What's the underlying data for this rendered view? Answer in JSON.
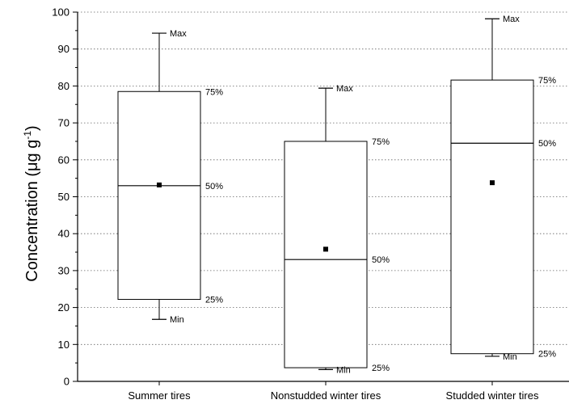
{
  "chart_data": {
    "type": "box",
    "ylabel": "Concentration (μg g",
    "ylabel_sup": "-1",
    "ylabel_close": ")",
    "ylim": [
      0,
      100
    ],
    "yticks": [
      0,
      10,
      20,
      30,
      40,
      50,
      60,
      70,
      80,
      90,
      100
    ],
    "grid": "horizontal dotted",
    "annotation_labels": {
      "max": "Max",
      "q3": "75%",
      "median": "50%",
      "q1": "25%",
      "min": "Min"
    },
    "categories": [
      "Summer tires",
      "Nonstudded winter tires",
      "Studded winter tires"
    ],
    "boxes": [
      {
        "category": "Summer tires",
        "min": 16.8,
        "q1": 22.2,
        "median": 53.0,
        "q3": 78.5,
        "max": 94.3,
        "mean": 53.2
      },
      {
        "category": "Nonstudded winter tires",
        "min": 3.2,
        "q1": 3.7,
        "median": 33.0,
        "q3": 65.0,
        "max": 79.4,
        "mean": 35.8
      },
      {
        "category": "Studded winter tires",
        "min": 6.8,
        "q1": 7.5,
        "median": 64.5,
        "q3": 81.6,
        "max": 98.2,
        "mean": 53.8
      }
    ]
  }
}
